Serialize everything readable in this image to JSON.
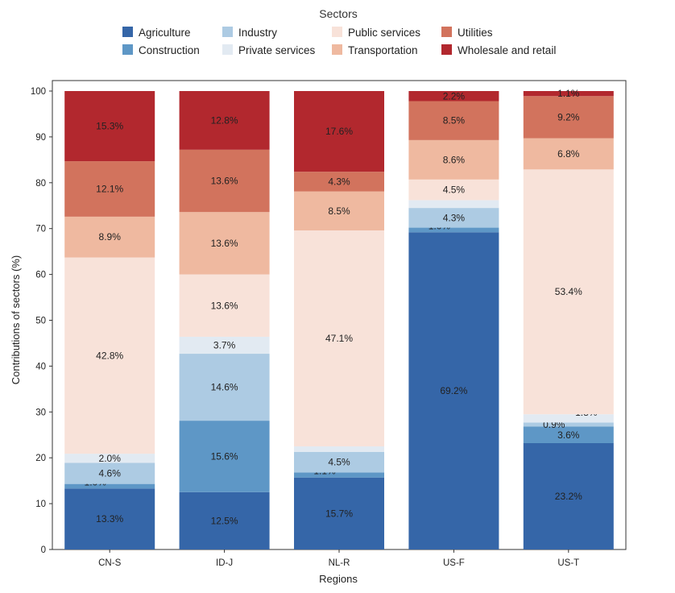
{
  "chart_data": {
    "type": "bar",
    "stacked": true,
    "title": "",
    "xlabel": "Regions",
    "ylabel": "Contributions of sectors (%)",
    "ylim": [
      0,
      100
    ],
    "yticks": [
      0,
      10,
      20,
      30,
      40,
      50,
      60,
      70,
      80,
      90,
      100
    ],
    "grid": false,
    "legend": {
      "title": "Sectors",
      "placement": "top-center",
      "entries": [
        "Agriculture",
        "Construction",
        "Industry",
        "Private services",
        "Public services",
        "Transportation",
        "Utilities",
        "Wholesale and retail"
      ]
    },
    "categories": [
      "CN-S",
      "ID-J",
      "NL-R",
      "US-F",
      "US-T"
    ],
    "series": [
      {
        "name": "Agriculture",
        "color": "#3566a8",
        "values": [
          13.3,
          12.5,
          15.7,
          69.2,
          23.2
        ],
        "labels": [
          "13.3%",
          "12.5%",
          "15.7%",
          "69.2%",
          "23.2%"
        ]
      },
      {
        "name": "Construction",
        "color": "#5e97c6",
        "values": [
          1.0,
          15.6,
          1.1,
          1.0,
          3.6
        ],
        "labels": [
          "1.0%",
          "15.6%",
          "1.1%",
          "1.0%",
          "3.6%"
        ]
      },
      {
        "name": "Industry",
        "color": "#adcbe3",
        "values": [
          4.6,
          14.6,
          4.5,
          4.3,
          0.9
        ],
        "labels": [
          "4.6%",
          "14.6%",
          "4.5%",
          "4.3%",
          "0.9%"
        ]
      },
      {
        "name": "Private services",
        "color": "#e2eaf2",
        "values": [
          2.0,
          3.7,
          1.2,
          1.7,
          1.8
        ],
        "labels": [
          "2.0%",
          "3.7%",
          "1.2%",
          "1.7%",
          "1.8%"
        ]
      },
      {
        "name": "Public services",
        "color": "#f8e2d9",
        "values": [
          42.8,
          13.6,
          47.1,
          4.5,
          53.4
        ],
        "labels": [
          "42.8%",
          "13.6%",
          "47.1%",
          "4.5%",
          "53.4%"
        ]
      },
      {
        "name": "Transportation",
        "color": "#efb9a0",
        "values": [
          8.9,
          13.6,
          8.5,
          8.6,
          6.8
        ],
        "labels": [
          "8.9%",
          "13.6%",
          "8.5%",
          "8.6%",
          "6.8%"
        ]
      },
      {
        "name": "Utilities",
        "color": "#d2735d",
        "values": [
          12.1,
          13.6,
          4.3,
          8.5,
          9.2
        ],
        "labels": [
          "12.1%",
          "13.6%",
          "4.3%",
          "8.5%",
          "9.2%"
        ]
      },
      {
        "name": "Wholesale and retail",
        "color": "#b2282e",
        "values": [
          15.3,
          12.8,
          17.6,
          2.2,
          1.1
        ],
        "labels": [
          "15.3%",
          "12.8%",
          "17.6%",
          "2.2%",
          "1.1%"
        ]
      }
    ]
  }
}
